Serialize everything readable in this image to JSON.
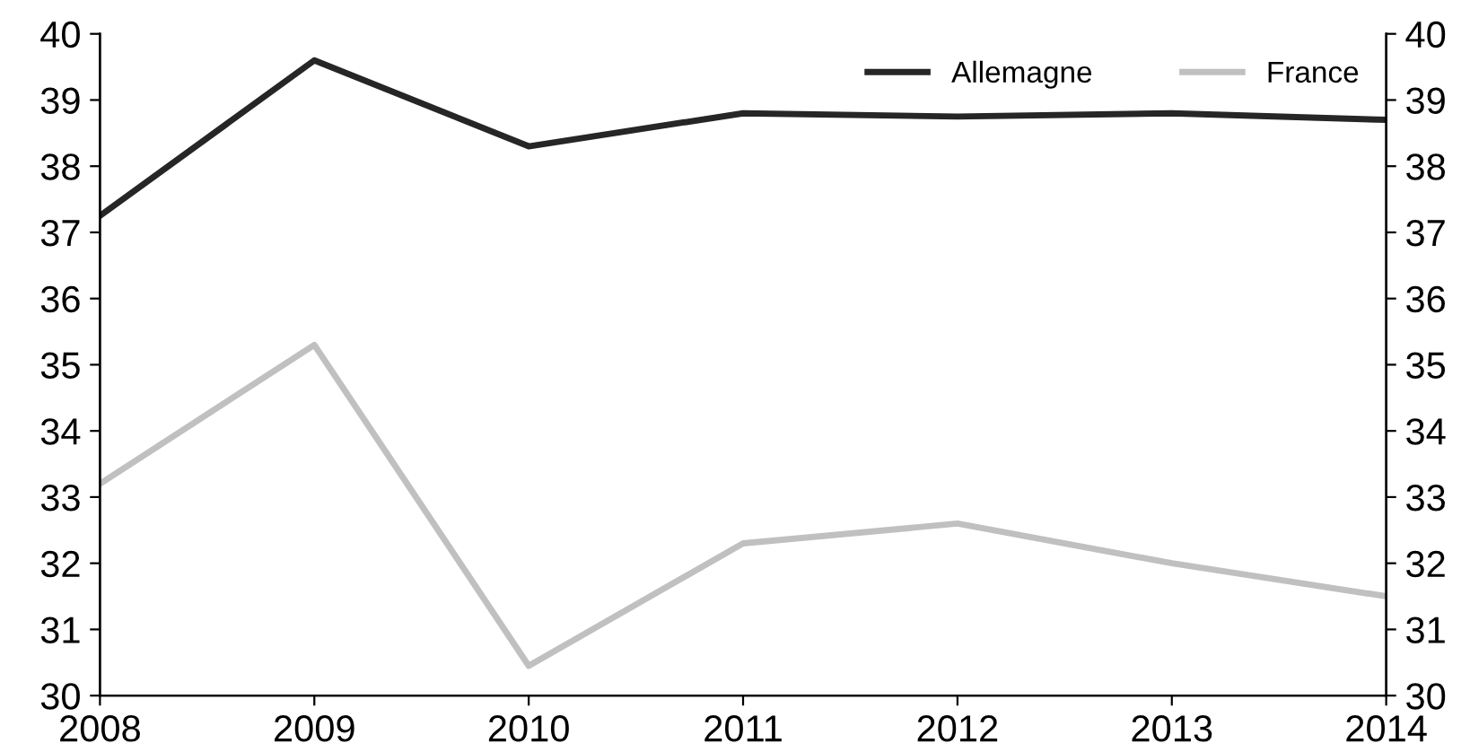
{
  "chart_data": {
    "type": "line",
    "x": [
      2008,
      2009,
      2010,
      2011,
      2012,
      2013,
      2014
    ],
    "series": [
      {
        "name": "Allemagne",
        "color": "#262626",
        "values": [
          37.25,
          39.6,
          38.3,
          38.8,
          38.75,
          38.8,
          38.7
        ]
      },
      {
        "name": "France",
        "color": "#c0c0c0",
        "values": [
          33.2,
          35.3,
          30.45,
          32.3,
          32.6,
          32.0,
          31.5
        ]
      }
    ],
    "xlim": [
      2008,
      2014
    ],
    "xticks": [
      2008,
      2009,
      2010,
      2011,
      2012,
      2013,
      2014
    ],
    "ylim": [
      30,
      40
    ],
    "yticks": [
      30,
      31,
      32,
      33,
      34,
      35,
      36,
      37,
      38,
      39,
      40
    ],
    "y2lim": [
      30,
      40
    ],
    "y2ticks": [
      30,
      31,
      32,
      33,
      34,
      35,
      36,
      37,
      38,
      39,
      40
    ],
    "legend": "top right",
    "grid": false,
    "marker": "none",
    "line_style": "solid"
  }
}
